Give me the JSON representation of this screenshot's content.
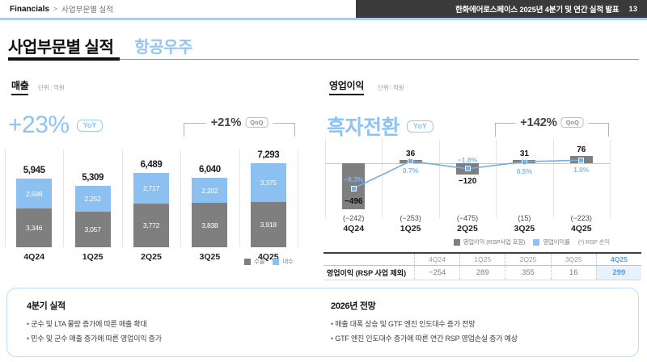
{
  "topbar": {
    "breadcrumb_root": "Financials",
    "breadcrumb_sep": ">",
    "breadcrumb_current": "사업부문별 실적",
    "deck_title": "한화에어로스페이스 2025년 4분기 및 연간 실적 발표",
    "page_number": "13"
  },
  "title": {
    "main": "사업부문별 실적",
    "segment": "항공우주"
  },
  "colors": {
    "accent_blue": "#8fc3f3",
    "bar_blue": "#8cc0f0",
    "bar_gray": "#7f7f7f",
    "line_blue": "#74aee3",
    "pct_blue": "#7fb8ec",
    "dark_bar": "#3a3a3a",
    "grid_gray": "#e6e6e6",
    "table_highlight_bg": "#e7f2fc",
    "table_highlight_text": "#5b9bd5"
  },
  "revenue": {
    "section_title": "매출",
    "unit_label": "단위 : 억원",
    "yoy_value": "+23%",
    "yoy_badge": "YoY",
    "qoq_value": "+21%",
    "qoq_badge": "QoQ",
    "legend": [
      {
        "label": "수출"
      },
      {
        "label": "내수"
      }
    ]
  },
  "profit": {
    "section_title": "영업이익",
    "unit_label": "단위 : 억원",
    "yoy_value": "흑자전환",
    "yoy_badge": "YoY",
    "qoq_value": "+142%",
    "qoq_badge": "QoQ",
    "legend": [
      {
        "label": "영업이익 (RSP사업 포함)"
      },
      {
        "label": "영업이익률"
      }
    ],
    "legend_note": "(*) RSP 손익"
  },
  "chart_data": [
    {
      "type": "bar",
      "variant": "stacked",
      "title": "매출",
      "unit": "억원",
      "categories": [
        "4Q24",
        "1Q25",
        "2Q25",
        "3Q25",
        "4Q25"
      ],
      "series": [
        {
          "name": "수출",
          "color": "#7f7f7f",
          "values": [
            3346,
            3057,
            3772,
            3838,
            3918
          ],
          "labels": [
            "3,346",
            "3,057",
            "3,772",
            "3,838",
            "3,918"
          ]
        },
        {
          "name": "내수",
          "color": "#8cc0f0",
          "values": [
            2598,
            2252,
            2717,
            2202,
            3375
          ],
          "labels": [
            "2,598",
            "2,252",
            "2,717",
            "2,202",
            "3,375"
          ]
        }
      ],
      "totals": [
        5945,
        5309,
        6489,
        6040,
        7293
      ],
      "total_labels": [
        "5,945",
        "5,309",
        "6,489",
        "6,040",
        "7,293"
      ],
      "yoy_change": "+23%",
      "qoq_change": "+21%",
      "qoq_span": [
        "3Q25",
        "4Q25"
      ],
      "legend_position": "bottom-right",
      "grid": "vertical-separators"
    },
    {
      "type": "bar+line",
      "title": "영업이익",
      "unit": "억원",
      "categories": [
        "4Q24",
        "1Q25",
        "2Q25",
        "3Q25",
        "4Q25"
      ],
      "bar_series": {
        "name": "영업이익 (RSP사업 포함)",
        "color": "#7f7f7f",
        "values": [
          -496,
          36,
          -120,
          31,
          76
        ],
        "labels": [
          "−496",
          "36",
          "−120",
          "31",
          "76"
        ]
      },
      "line_series": {
        "name": "영업이익률",
        "color": "#74aee3",
        "values_pct": [
          -8.3,
          0.7,
          -1.8,
          0.5,
          1.0
        ],
        "labels": [
          "−8.3%",
          "0.7%",
          "−1.8%",
          "0.5%",
          "1.0%"
        ]
      },
      "sub_values": {
        "name": "(*) RSP 손익",
        "labels": [
          "(−242)",
          "(−253)",
          "(−475)",
          "(15)",
          "(−223)"
        ]
      },
      "yoy_change": "흑자전환",
      "qoq_change": "+142%",
      "qoq_span": [
        "3Q25",
        "4Q25"
      ],
      "legend_position": "bottom-right",
      "grid": "vertical-separators"
    }
  ],
  "table": {
    "row_label": "영업이익 (RSP 사업 제외)",
    "columns": [
      "4Q24",
      "1Q25",
      "2Q25",
      "3Q25",
      "4Q25"
    ],
    "values": [
      "−254",
      "289",
      "355",
      "16",
      "299"
    ],
    "highlight_col": 4
  },
  "notes": {
    "left": {
      "title": "4분기 실적",
      "bullets": [
        "군수 및 LTA 물량 증가에 따른 매출 확대",
        "민수 및 군수 매출 증가에 따른 영업이익 증가"
      ]
    },
    "right": {
      "title": "2026년 전망",
      "bullets": [
        "매출 대폭 상승 및 GTF 엔진 인도대수 증가 전망",
        "GTF 엔진 인도대수 증가에 따른 연간 RSP 영업손실 증가 예상"
      ]
    }
  }
}
